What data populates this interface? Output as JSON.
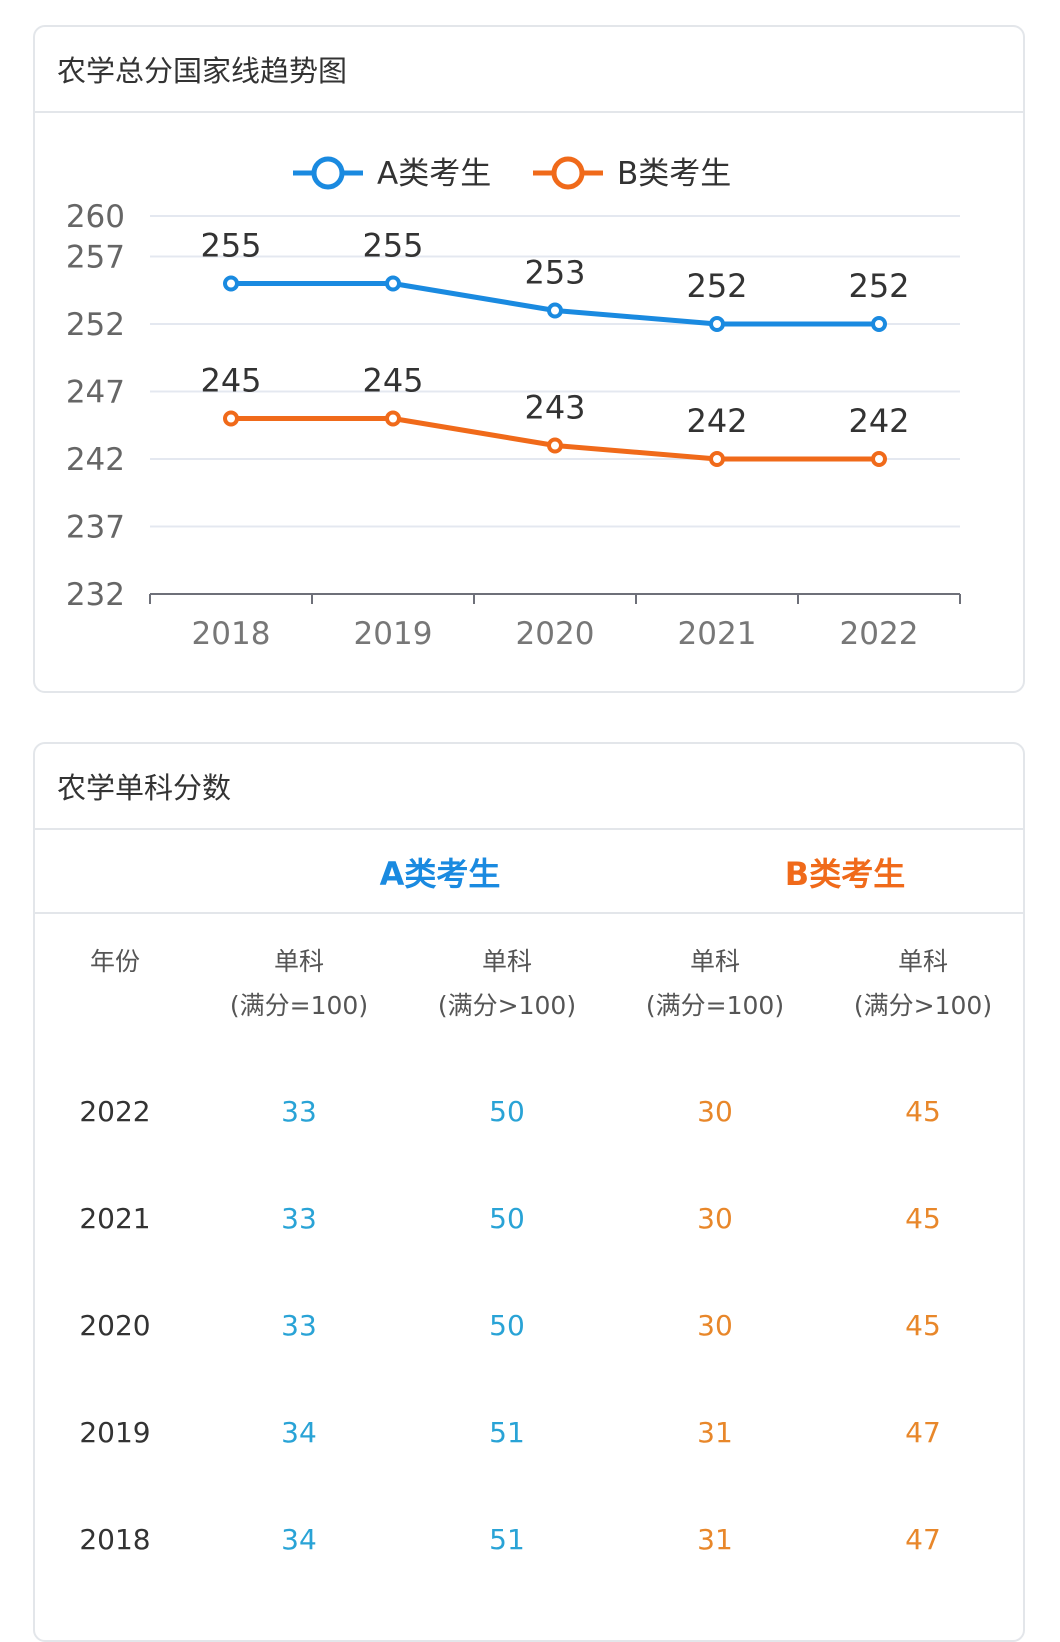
{
  "chart_card": {
    "title": "农学总分国家线趋势图"
  },
  "chart_data": {
    "type": "line",
    "title": "",
    "xlabel": "",
    "ylabel": "",
    "categories": [
      "2018",
      "2019",
      "2020",
      "2021",
      "2022"
    ],
    "y_ticks": [
      232,
      237,
      242,
      247,
      252,
      257,
      260
    ],
    "ylim": [
      232,
      260
    ],
    "grid": true,
    "legend": "top-center",
    "series": [
      {
        "name": "A类考生",
        "values": [
          255,
          255,
          253,
          252,
          252
        ],
        "color": "#1a8ae0"
      },
      {
        "name": "B类考生",
        "values": [
          245,
          245,
          243,
          242,
          242
        ],
        "color": "#f06a1a"
      }
    ]
  },
  "table_card": {
    "title": "农学单科分数",
    "group_a": "A类考生",
    "group_b": "B类考生",
    "columns": [
      {
        "line1": "年份",
        "line2": ""
      },
      {
        "line1": "单科",
        "line2": "(满分=100)"
      },
      {
        "line1": "单科",
        "line2": "(满分>100)"
      },
      {
        "line1": "单科",
        "line2": "(满分=100)"
      },
      {
        "line1": "单科",
        "line2": "(满分>100)"
      }
    ],
    "rows": [
      {
        "year": "2022",
        "a_eq100": "33",
        "a_gt100": "50",
        "b_eq100": "30",
        "b_gt100": "45"
      },
      {
        "year": "2021",
        "a_eq100": "33",
        "a_gt100": "50",
        "b_eq100": "30",
        "b_gt100": "45"
      },
      {
        "year": "2020",
        "a_eq100": "33",
        "a_gt100": "50",
        "b_eq100": "30",
        "b_gt100": "45"
      },
      {
        "year": "2019",
        "a_eq100": "34",
        "a_gt100": "51",
        "b_eq100": "31",
        "b_gt100": "47"
      },
      {
        "year": "2018",
        "a_eq100": "34",
        "a_gt100": "51",
        "b_eq100": "31",
        "b_gt100": "47"
      }
    ],
    "colors": {
      "a": "#29a3d6",
      "b": "#e8872a"
    }
  }
}
